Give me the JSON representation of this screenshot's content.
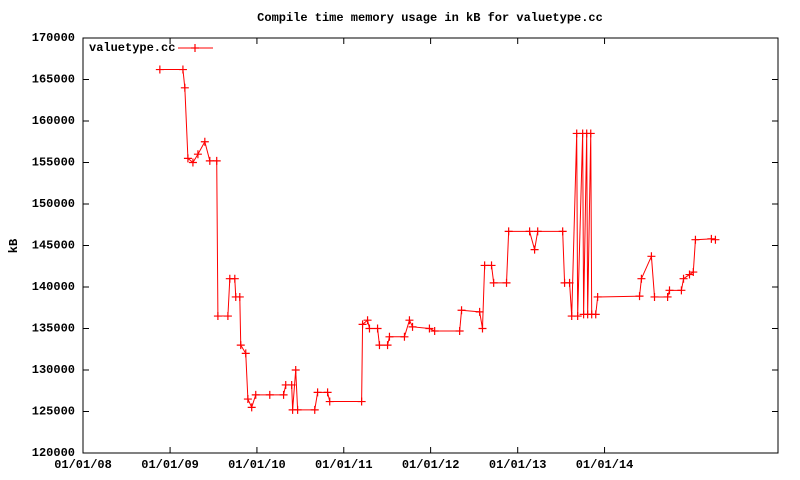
{
  "chart_data": {
    "type": "line",
    "title": "Compile time memory usage in kB for valuetype.cc",
    "y_label": "kB",
    "xlim": [
      "2008-01-01",
      "2015-12-31"
    ],
    "xticks": [
      {
        "value": "2008-01-01",
        "label": "01/01/08"
      },
      {
        "value": "2009-01-01",
        "label": "01/01/09"
      },
      {
        "value": "2010-01-01",
        "label": "01/01/10"
      },
      {
        "value": "2011-01-01",
        "label": "01/01/11"
      },
      {
        "value": "2012-01-01",
        "label": "01/01/12"
      },
      {
        "value": "2013-01-01",
        "label": "01/01/13"
      },
      {
        "value": "2014-01-01",
        "label": "01/01/14"
      }
    ],
    "ylim": [
      120000,
      170000
    ],
    "yticks": [
      120000,
      125000,
      130000,
      135000,
      140000,
      145000,
      150000,
      155000,
      160000,
      165000,
      170000
    ],
    "legend": "top-left",
    "series": [
      {
        "name": "valuetype.cc",
        "color": "#ff0000",
        "x": [
          "2008-11-19",
          "2009-02-24",
          "2009-03-04",
          "2009-03-17",
          "2009-04-07",
          "2009-04-28",
          "2009-05-27",
          "2009-06-17",
          "2009-07-16",
          "2009-07-21",
          "2009-09-01",
          "2009-09-09",
          "2009-09-30",
          "2009-10-04",
          "2009-10-21",
          "2009-10-25",
          "2009-11-15",
          "2009-11-24",
          "2009-12-10",
          "2009-12-27",
          "2010-02-24",
          "2010-04-23",
          "2010-05-02",
          "2010-05-27",
          "2010-05-31",
          "2010-06-13",
          "2010-06-21",
          "2010-09-01",
          "2010-09-13",
          "2010-10-25",
          "2010-11-03",
          "2011-03-17",
          "2011-03-21",
          "2011-04-11",
          "2011-04-19",
          "2011-05-23",
          "2011-05-31",
          "2011-07-04",
          "2011-07-12",
          "2011-09-13",
          "2011-10-04",
          "2011-10-17",
          "2011-12-27",
          "2012-01-18",
          "2012-05-02",
          "2012-05-10",
          "2012-07-25",
          "2012-08-06",
          "2012-08-15",
          "2012-09-13",
          "2012-09-22",
          "2012-11-15",
          "2012-11-24",
          "2013-02-20",
          "2013-03-13",
          "2013-03-26",
          "2013-07-09",
          "2013-07-17",
          "2013-08-07",
          "2013-08-16",
          "2013-09-06",
          "2013-09-10",
          "2013-10-01",
          "2013-10-05",
          "2013-10-18",
          "2013-10-22",
          "2013-11-04",
          "2013-11-08",
          "2013-11-25",
          "2013-12-03",
          "2014-05-28",
          "2014-06-05",
          "2014-07-17",
          "2014-07-30",
          "2014-09-23",
          "2014-10-01",
          "2014-11-20",
          "2014-11-29",
          "2014-12-24",
          "2015-01-09",
          "2015-01-18",
          "2015-03-26",
          "2015-04-12"
        ],
        "values": [
          166200,
          166200,
          164000,
          155500,
          155000,
          156000,
          157500,
          155200,
          155200,
          136500,
          136500,
          141000,
          141000,
          138800,
          138800,
          133000,
          132000,
          126500,
          125500,
          127000,
          127000,
          127000,
          128200,
          128200,
          125200,
          130000,
          125200,
          125200,
          127300,
          127300,
          126200,
          126200,
          135500,
          136000,
          135000,
          135000,
          133000,
          133000,
          134000,
          134000,
          136000,
          135200,
          135000,
          134700,
          134700,
          137200,
          137000,
          135000,
          142600,
          142600,
          140500,
          140500,
          146700,
          146700,
          144500,
          146700,
          146700,
          140500,
          140500,
          136500,
          158500,
          136500,
          158500,
          136700,
          158500,
          136700,
          158500,
          136700,
          136700,
          138800,
          138900,
          141000,
          143700,
          138800,
          138800,
          139600,
          139600,
          141000,
          141500,
          141800,
          145700,
          145800,
          145700
        ]
      }
    ]
  }
}
